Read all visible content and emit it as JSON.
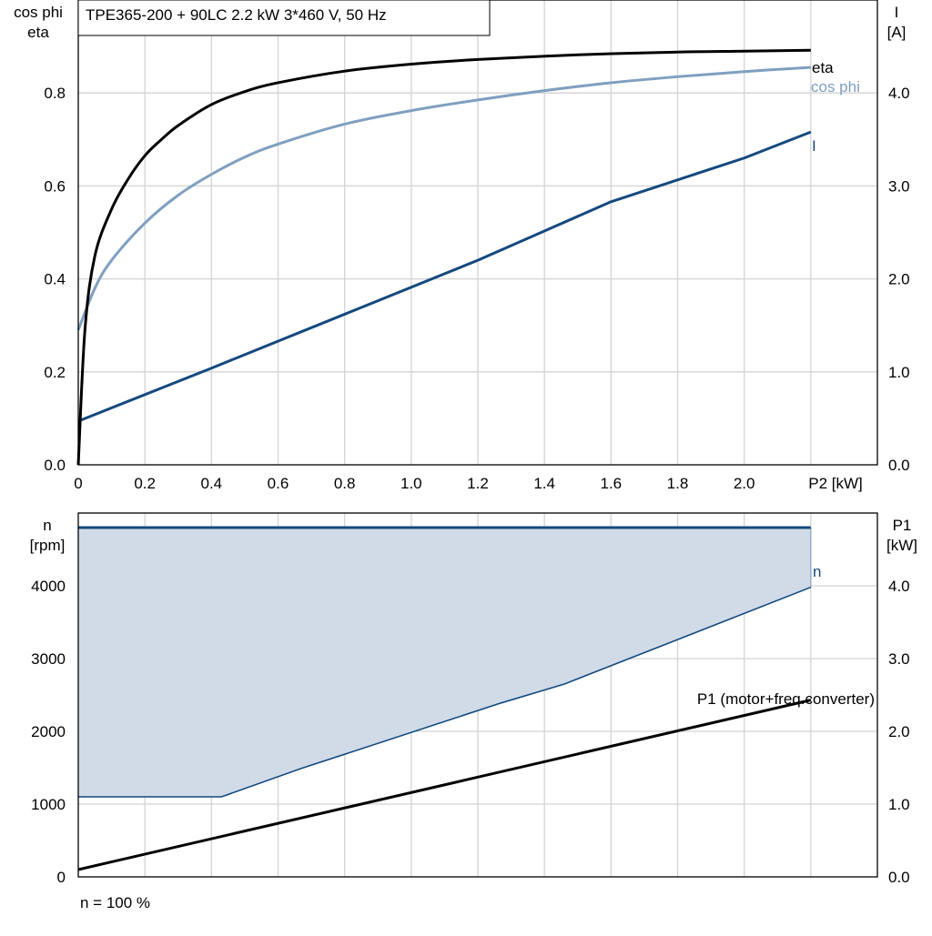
{
  "title": "TPE365-200 + 90LC   2.2 kW   3*460 V, 50 Hz",
  "footer_note": "n = 100 %",
  "colors": {
    "eta": "#000000",
    "cos_phi": "#7f9fbf",
    "I": "#14497f",
    "n_line": "#14497f",
    "n_fill": "#d0dbe7",
    "P1": "#000000",
    "grid": "#d3d3d3"
  },
  "chart_data": [
    {
      "type": "line",
      "xlabel": "P2 [kW]",
      "ylabel_left_line1": "cos phi",
      "ylabel_left_line2": "eta",
      "ylabel_right_line1": "I",
      "ylabel_right_line2": "[A]",
      "xlim": [
        0,
        2.4
      ],
      "ylim_left": [
        0,
        1.0
      ],
      "ylim_right": [
        0,
        5.0
      ],
      "xticks": [
        "0",
        "0.2",
        "0.4",
        "0.6",
        "0.8",
        "1.0",
        "1.2",
        "1.4",
        "1.6",
        "1.8",
        "2.0"
      ],
      "xtick_values": [
        0,
        0.2,
        0.4,
        0.6,
        0.8,
        1.0,
        1.2,
        1.4,
        1.6,
        1.8,
        2.0
      ],
      "yticks_left": [
        "0.0",
        "0.2",
        "0.4",
        "0.6",
        "0.8"
      ],
      "ytick_values_left": [
        0,
        0.2,
        0.4,
        0.6,
        0.8
      ],
      "yticks_right": [
        "0.0",
        "1.0",
        "2.0",
        "3.0",
        "4.0"
      ],
      "ytick_values_right": [
        0,
        1,
        2,
        3,
        4
      ],
      "grid": true,
      "series": [
        {
          "name": "eta",
          "axis": "left",
          "x": [
            0,
            0.02,
            0.05,
            0.1,
            0.15,
            0.2,
            0.25,
            0.3,
            0.4,
            0.5,
            0.6,
            0.8,
            1.0,
            1.2,
            1.5,
            1.8,
            2.0,
            2.2
          ],
          "y": [
            0,
            0.29,
            0.45,
            0.55,
            0.615,
            0.665,
            0.7,
            0.73,
            0.775,
            0.803,
            0.822,
            0.847,
            0.862,
            0.872,
            0.882,
            0.888,
            0.89,
            0.892
          ]
        },
        {
          "name": "cos phi",
          "axis": "left",
          "x": [
            0,
            0.05,
            0.1,
            0.2,
            0.3,
            0.4,
            0.5,
            0.6,
            0.8,
            1.0,
            1.2,
            1.4,
            1.6,
            1.8,
            2.0,
            2.2
          ],
          "y": [
            0.29,
            0.38,
            0.44,
            0.52,
            0.58,
            0.625,
            0.662,
            0.69,
            0.733,
            0.762,
            0.785,
            0.805,
            0.822,
            0.835,
            0.846,
            0.855
          ]
        },
        {
          "name": "I",
          "axis": "right",
          "x": [
            0,
            0.4,
            0.8,
            1.2,
            1.6,
            2.0,
            2.2
          ],
          "y": [
            0.47,
            1.04,
            1.62,
            2.2,
            2.83,
            3.3,
            3.58
          ]
        }
      ]
    },
    {
      "type": "area",
      "xlabel": "",
      "ylabel_left_line1": "n",
      "ylabel_left_line2": "[rpm]",
      "ylabel_right_line1": "P1",
      "ylabel_right_line2": "[kW]",
      "xlim": [
        0,
        2.4
      ],
      "ylim_left": [
        0,
        5000
      ],
      "ylim_right": [
        0,
        5.0
      ],
      "yticks_left": [
        "0",
        "1000",
        "2000",
        "3000",
        "4000"
      ],
      "ytick_values_left": [
        0,
        1000,
        2000,
        3000,
        4000
      ],
      "yticks_right": [
        "0.0",
        "1.0",
        "2.0",
        "3.0",
        "4.0"
      ],
      "ytick_values_right": [
        0,
        1,
        2,
        3,
        4
      ],
      "grid": true,
      "series": [
        {
          "name": "n",
          "axis": "left",
          "x": [
            0,
            2.2
          ],
          "y": [
            4800,
            4800
          ]
        },
        {
          "name": "n_min",
          "axis": "left",
          "x": [
            0,
            0.43,
            0.67,
            1.27,
            1.46,
            2.2
          ],
          "y": [
            1100,
            1100,
            1490,
            2390,
            2650,
            3980
          ]
        },
        {
          "name": "P1 (motor+freq.converter)",
          "axis": "right",
          "x": [
            0,
            2.2
          ],
          "y": [
            0.1,
            2.43
          ]
        }
      ]
    }
  ]
}
